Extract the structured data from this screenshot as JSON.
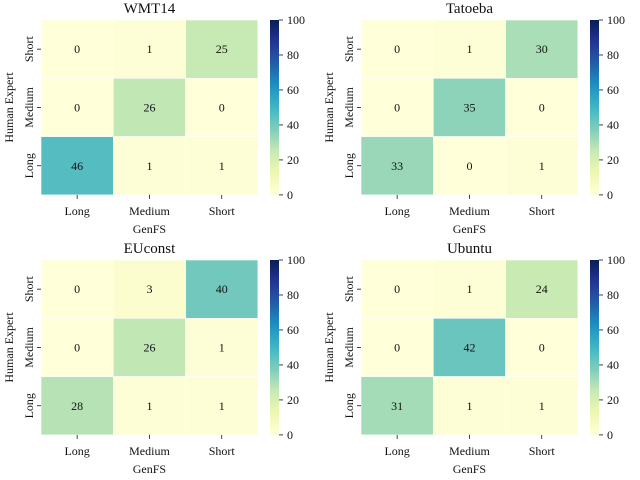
{
  "chart_data": [
    {
      "type": "heatmap",
      "title": "WMT14",
      "xlabel": "GenFS",
      "ylabel": "Human Expert",
      "x_categories": [
        "Long",
        "Medium",
        "Short"
      ],
      "y_categories": [
        "Short",
        "Medium",
        "Long"
      ],
      "values": [
        [
          0,
          1,
          25
        ],
        [
          0,
          26,
          0
        ],
        [
          46,
          1,
          1
        ]
      ],
      "colorbar": {
        "min": 0,
        "max": 100,
        "ticks": [
          0,
          20,
          40,
          60,
          80,
          100
        ],
        "colormap": "YlGnBu"
      }
    },
    {
      "type": "heatmap",
      "title": "Tatoeba",
      "xlabel": "GenFS",
      "ylabel": "Human Expert",
      "x_categories": [
        "Long",
        "Medium",
        "Short"
      ],
      "y_categories": [
        "Short",
        "Medium",
        "Long"
      ],
      "values": [
        [
          0,
          1,
          30
        ],
        [
          0,
          35,
          0
        ],
        [
          33,
          0,
          1
        ]
      ],
      "colorbar": {
        "min": 0,
        "max": 100,
        "ticks": [
          0,
          20,
          40,
          60,
          80,
          100
        ],
        "colormap": "YlGnBu"
      }
    },
    {
      "type": "heatmap",
      "title": "EUconst",
      "xlabel": "GenFS",
      "ylabel": "Human Expert",
      "x_categories": [
        "Long",
        "Medium",
        "Short"
      ],
      "y_categories": [
        "Short",
        "Medium",
        "Long"
      ],
      "values": [
        [
          0,
          3,
          40
        ],
        [
          0,
          26,
          1
        ],
        [
          28,
          1,
          1
        ]
      ],
      "colorbar": {
        "min": 0,
        "max": 100,
        "ticks": [
          0,
          20,
          40,
          60,
          80,
          100
        ],
        "colormap": "YlGnBu"
      }
    },
    {
      "type": "heatmap",
      "title": "Ubuntu",
      "xlabel": "GenFS",
      "ylabel": "Human Expert",
      "x_categories": [
        "Long",
        "Medium",
        "Short"
      ],
      "y_categories": [
        "Short",
        "Medium",
        "Long"
      ],
      "values": [
        [
          0,
          1,
          24
        ],
        [
          0,
          42,
          0
        ],
        [
          31,
          1,
          1
        ]
      ],
      "colorbar": {
        "min": 0,
        "max": 100,
        "ticks": [
          0,
          20,
          40,
          60,
          80,
          100
        ],
        "colormap": "YlGnBu"
      }
    }
  ]
}
